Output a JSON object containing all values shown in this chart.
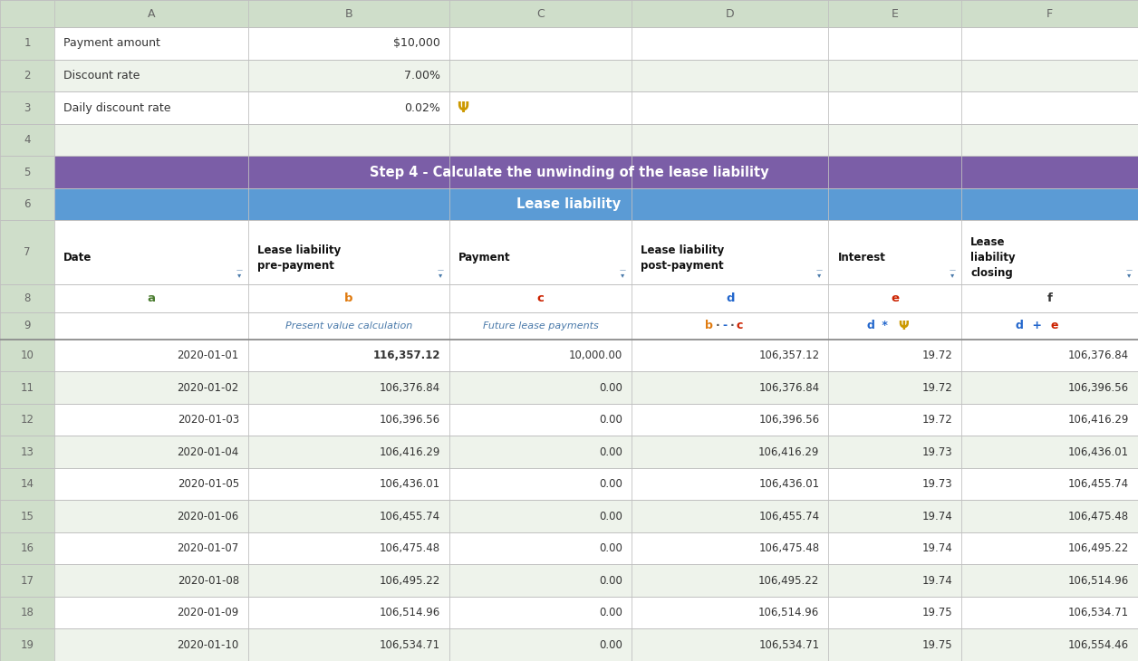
{
  "col_header_bg": "#cfdeca",
  "col_header_text": "#666666",
  "row_num_bg": "#cfdeca",
  "row_num_text": "#666666",
  "cell_bg_white": "#ffffff",
  "cell_bg_light": "#eef3eb",
  "step4_bg": "#7b5ea7",
  "step4_text": "#ffffff",
  "lease_liability_bg": "#5b9bd5",
  "lease_liability_text": "#ffffff",
  "data_row_bg_even": "#ffffff",
  "data_row_bg_odd": "#eef3eb",
  "grid_color": "#c0c0c0",
  "col_labels": [
    "A",
    "B",
    "C",
    "D",
    "E",
    "F"
  ],
  "row_numbers": [
    "1",
    "2",
    "3",
    "4",
    "5",
    "6",
    "7",
    "8",
    "9",
    "10",
    "11",
    "12",
    "13",
    "14",
    "15",
    "16",
    "17",
    "18",
    "19"
  ],
  "param_labels": [
    "Payment amount",
    "Discount rate",
    "Daily discount rate"
  ],
  "param_values": [
    "$10,000",
    "7.00%",
    "0.02%"
  ],
  "step4_text_content": "Step 4 - Calculate the unwinding of the lease liability",
  "lease_liability_text_content": "Lease liability",
  "row8_labels": [
    "a",
    "b",
    "c",
    "d",
    "e",
    "f"
  ],
  "row8_colors": [
    "#4a7c2f",
    "#e07b10",
    "#cc2200",
    "#2266cc",
    "#cc2200",
    "#333333"
  ],
  "row9_italic_color": "#4a7aaa",
  "filter_icon_color": "#4a7aaa",
  "psi_color": "#cc9900",
  "dates": [
    "2020-01-01",
    "2020-01-02",
    "2020-01-03",
    "2020-01-04",
    "2020-01-05",
    "2020-01-06",
    "2020-01-07",
    "2020-01-08",
    "2020-01-09",
    "2020-01-10"
  ],
  "pre_payment": [
    "116,357.12",
    "106,376.84",
    "106,396.56",
    "106,416.29",
    "106,436.01",
    "106,455.74",
    "106,475.48",
    "106,495.22",
    "106,514.96",
    "106,534.71"
  ],
  "payment": [
    "10,000.00",
    "0.00",
    "0.00",
    "0.00",
    "0.00",
    "0.00",
    "0.00",
    "0.00",
    "0.00",
    "0.00"
  ],
  "post_payment": [
    "106,357.12",
    "106,376.84",
    "106,396.56",
    "106,416.29",
    "106,436.01",
    "106,455.74",
    "106,475.48",
    "106,495.22",
    "106,514.96",
    "106,534.71"
  ],
  "interest": [
    "19.72",
    "19.72",
    "19.72",
    "19.73",
    "19.73",
    "19.74",
    "19.74",
    "19.74",
    "19.75",
    "19.75"
  ],
  "closing": [
    "106,376.84",
    "106,396.56",
    "106,416.29",
    "106,436.01",
    "106,455.74",
    "106,475.48",
    "106,495.22",
    "106,514.96",
    "106,534.71",
    "106,554.46"
  ],
  "fig_width": 12.56,
  "fig_height": 7.3,
  "row9_col_b": "Present value calculation",
  "row9_col_c": "Future lease payments"
}
